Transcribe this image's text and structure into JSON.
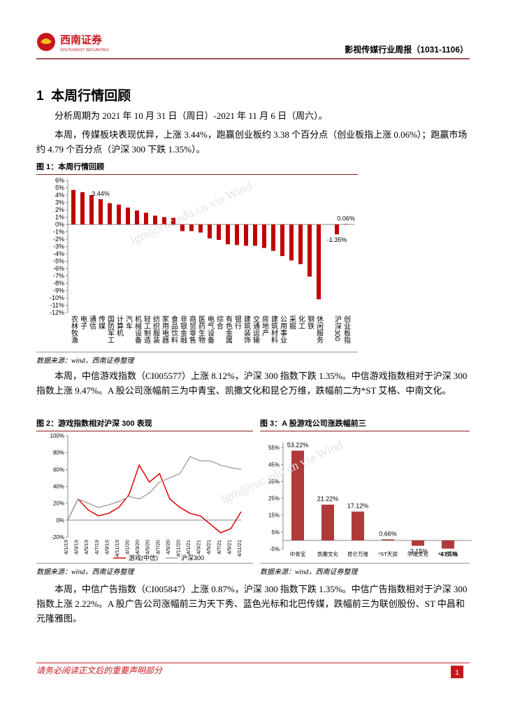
{
  "header": {
    "logo_cn": "西南证券",
    "logo_en": "SOUTHWEST SECURITIES",
    "report_title": "影视传媒行业周报（1031-1106）"
  },
  "section": {
    "number": "1",
    "title": "本周行情回顾"
  },
  "paragraphs": [
    "分析周期为 2021 年 10 月 31 日（周日）-2021 年 11 月 6 日（周六）。",
    "本周，传媒板块表现优异，上涨 3.44%，跑赢创业板约 3.38 个百分点（创业板指上涨 0.06%）；跑赢市场约 4.79 个百分点（沪深 300 下跌 1.35%）。",
    "本周，中信游戏指数（CI005577）上涨 8.12%，沪深 300 指数下跌 1.35%。中信游戏指数相对于沪深 300 指数上涨 9.47%。A 股公司涨幅前三为中青宝、凯撒文化和昆仑万维，跌幅前二为*ST 艾格、中南文化。",
    "本周，中信广告指数（CI005847）上涨 0.87%，沪深 300 指数下跌 1.35%。中信广告指数相对于沪深 300 指数上涨 2.22%。A 股广告公司涨幅前三为天下秀、蓝色光标和北巴传媒，跌幅前三为联创股份、ST 中昌和元隆雅图。"
  ],
  "figures": [
    {
      "title": "图 1：本周行情回顾",
      "source": "数据来源：wind，西南证券整理"
    },
    {
      "title": "图 2：游戏指数相对沪深 300 表现",
      "source": "数据来源：wind，西南证券整理"
    },
    {
      "title": "图 3：A 股游戏公司涨跌幅前三",
      "source": "数据来源：wind，西南证券整理"
    }
  ],
  "watermark": "lgm@ruc.edu.cn via Wind",
  "footer": {
    "disclaimer": "请务必阅读正文后的重要声明部分",
    "page": "1"
  },
  "chart_data": [
    {
      "type": "bar",
      "color": "#c00000",
      "categories": [
        "农林牧渔",
        "电子",
        "通信",
        "传媒",
        "国防军工",
        "计算机",
        "汽车",
        "机械设备",
        "轻工制造",
        "纺织服装",
        "家用电器",
        "食品饮料",
        "非银金融",
        "商贸零售",
        "医药生物",
        "电气设备",
        "综合",
        "有色金属",
        "银行",
        "建筑装饰",
        "交通运输",
        "房地产",
        "建筑材料",
        "公用事业",
        "采掘",
        "化工",
        "钢铁",
        "休闲服务",
        null,
        "沪深300",
        "创业板指"
      ],
      "values": [
        4.7,
        4.4,
        4.0,
        3.44,
        2.9,
        2.7,
        2.3,
        1.9,
        1.6,
        1.2,
        1.0,
        0.9,
        -0.9,
        -0.9,
        -1.1,
        -1.9,
        -2.1,
        -2.7,
        -2.8,
        -2.9,
        -2.9,
        -3.2,
        -3.6,
        -4.3,
        -4.9,
        -5.4,
        -7.1,
        -10.2,
        null,
        -1.35,
        0.06
      ],
      "value_labels": [
        null,
        null,
        null,
        "3.44%",
        null,
        null,
        null,
        null,
        null,
        null,
        null,
        null,
        null,
        null,
        null,
        null,
        null,
        null,
        null,
        null,
        null,
        null,
        null,
        null,
        null,
        null,
        null,
        null,
        null,
        "-1.35%",
        "0.06%"
      ],
      "ylim": [
        -12,
        6
      ],
      "yticks": [
        {
          "value": 6,
          "label": "6%"
        },
        {
          "value": 5,
          "label": "5%"
        },
        {
          "value": 4,
          "label": "4%"
        },
        {
          "value": 3,
          "label": "3%"
        },
        {
          "value": 2,
          "label": "2%"
        },
        {
          "value": 1,
          "label": "1%"
        },
        {
          "value": 0,
          "label": "0%"
        },
        {
          "value": -1,
          "label": "-1%"
        },
        {
          "value": -2,
          "label": "-2%"
        },
        {
          "value": -3,
          "label": "-3%"
        },
        {
          "value": -4,
          "label": "-4%"
        },
        {
          "value": -5,
          "label": "-5%"
        },
        {
          "value": -6,
          "label": "-6%"
        },
        {
          "value": -7,
          "label": "-7%"
        },
        {
          "value": -8,
          "label": "-8%"
        },
        {
          "value": -9,
          "label": "-9%"
        },
        {
          "value": -10,
          "label": "-10%"
        },
        {
          "value": -11,
          "label": "-11%"
        },
        {
          "value": -12,
          "label": "-12%"
        }
      ],
      "grid": false
    },
    {
      "type": "line",
      "categories": [
        "4/1/19",
        "4/3/19",
        "4/5/19",
        "4/7/19",
        "4/9/19",
        "4/11/19",
        "4/1/20",
        "4/3/20",
        "4/5/20",
        "4/7/20",
        "4/9/20",
        "4/11/20",
        "4/1/21",
        "4/3/21",
        "4/5/21",
        "4/7/21",
        "4/9/21",
        "4/11/21"
      ],
      "series": [
        {
          "name": "游戏(中信)",
          "color": "#e00000",
          "values": [
            0,
            25,
            12,
            5,
            8,
            15,
            30,
            65,
            45,
            55,
            25,
            15,
            8,
            5,
            -5,
            -15,
            -10,
            10
          ]
        },
        {
          "name": "沪深300",
          "color": "#a6a6a6",
          "values": [
            0,
            25,
            20,
            15,
            18,
            22,
            28,
            25,
            32,
            45,
            50,
            55,
            75,
            70,
            70,
            65,
            62,
            60
          ]
        }
      ],
      "ylim": [
        -20,
        100
      ],
      "yticks": [
        {
          "value": -20,
          "label": "-20%"
        },
        {
          "value": 0,
          "label": "0%"
        },
        {
          "value": 20,
          "label": "20%"
        },
        {
          "value": 40,
          "label": "40%"
        },
        {
          "value": 60,
          "label": "60%"
        },
        {
          "value": 80,
          "label": "80%"
        },
        {
          "value": 100,
          "label": "100%"
        }
      ],
      "legend": "bottom",
      "grid": false
    },
    {
      "type": "bar",
      "color": "#b03a3a",
      "categories": [
        "中青宝",
        "凯撒文化",
        "昆仑万维",
        "*ST天润",
        "中南文化",
        "*ST艾格"
      ],
      "values": [
        53.22,
        21.22,
        17.12,
        0.66,
        -3.15,
        -4.85
      ],
      "value_labels": [
        "53.22%",
        "21.22%",
        "17.12%",
        "0.66%",
        "-3.15%",
        "-4.85%"
      ],
      "ylim": [
        -5,
        58
      ],
      "yticks": [
        {
          "value": -5,
          "label": "-5%"
        },
        {
          "value": 5,
          "label": "5%"
        },
        {
          "value": 15,
          "label": "15%"
        },
        {
          "value": 25,
          "label": "25%"
        },
        {
          "value": 35,
          "label": "35%"
        },
        {
          "value": 45,
          "label": "45%"
        },
        {
          "value": 55,
          "label": "55%"
        }
      ],
      "grid": false
    }
  ]
}
